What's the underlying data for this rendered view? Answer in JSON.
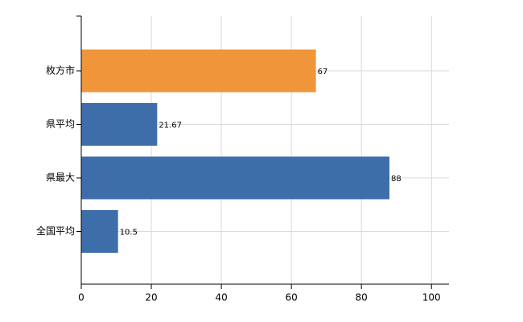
{
  "chart_data": {
    "type": "bar",
    "orientation": "horizontal",
    "categories": [
      "枚方市",
      "県平均",
      "県最大",
      "全国平均"
    ],
    "values": [
      67,
      21.67,
      88,
      10.5
    ],
    "colors": [
      "#f0953a",
      "#3d6ea9",
      "#3d6ea9",
      "#3d6ea9"
    ],
    "xlim": [
      0,
      105
    ],
    "xticks": [
      0,
      20,
      40,
      60,
      80,
      100
    ],
    "grid": true
  }
}
